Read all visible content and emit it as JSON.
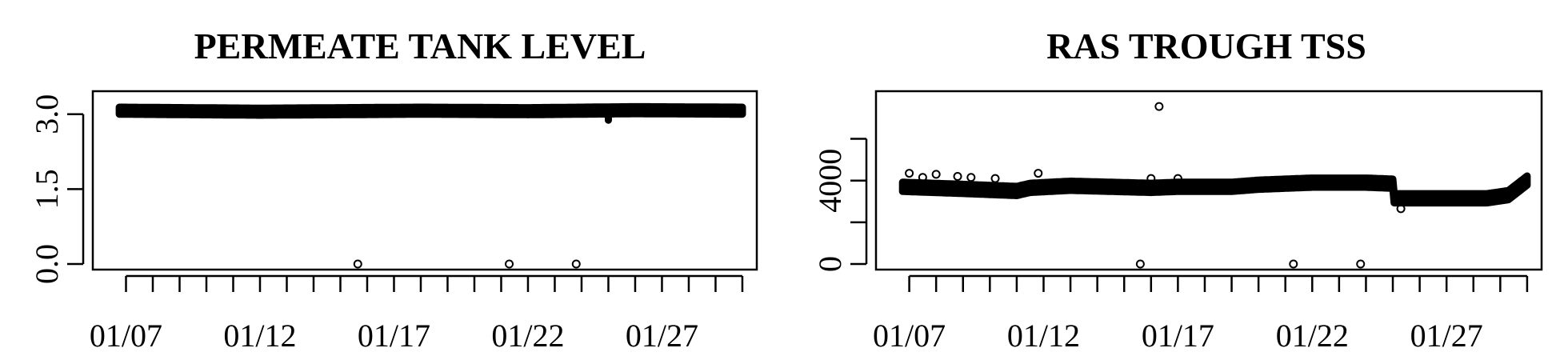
{
  "chart_data": [
    {
      "type": "scatter",
      "title": "PERMEATE TANK LEVEL",
      "xlabel": "",
      "ylabel": "",
      "x_tick_labels": [
        "01/07",
        "01/12",
        "01/17",
        "01/22",
        "01/27"
      ],
      "x_tick_days": [
        7,
        12,
        17,
        22,
        27
      ],
      "y_ticks": [
        0.0,
        1.5,
        3.0
      ],
      "y_tick_labels": [
        "0.0",
        "1.5",
        "3.0"
      ],
      "xlim": [
        6.0,
        30.3
      ],
      "ylim": [
        0.0,
        3.3
      ],
      "band": {
        "description_values": "dense continuous readings",
        "x_start": 6.75,
        "x_end": 30.0,
        "level_points": [
          [
            6.75,
            3.07
          ],
          [
            12,
            3.05
          ],
          [
            18,
            3.07
          ],
          [
            22,
            3.06
          ],
          [
            26,
            3.08
          ],
          [
            30.0,
            3.07
          ]
        ],
        "spread": 0.07,
        "dips": [
          [
            25.0,
            2.88
          ]
        ]
      },
      "outliers": [
        [
          15.65,
          0.0
        ],
        [
          21.3,
          0.0
        ],
        [
          23.8,
          0.0
        ]
      ],
      "grid": false,
      "legend": "none"
    },
    {
      "type": "scatter",
      "title": "RAS TROUGH TSS",
      "xlabel": "",
      "ylabel": "",
      "x_tick_labels": [
        "01/07",
        "01/12",
        "01/17",
        "01/22",
        "01/27"
      ],
      "x_tick_days": [
        7,
        12,
        17,
        22,
        27
      ],
      "y_ticks": [
        0,
        4000
      ],
      "y_tick_labels": [
        "0",
        "4000"
      ],
      "y_minor_ticks": [
        2000,
        6000
      ],
      "xlim": [
        6.0,
        30.3
      ],
      "ylim": [
        0,
        7900
      ],
      "band": {
        "x_start": 6.75,
        "x_end": 30.0,
        "level_points": [
          [
            6.75,
            3700
          ],
          [
            9,
            3600
          ],
          [
            11,
            3500
          ],
          [
            11.5,
            3650
          ],
          [
            13,
            3750
          ],
          [
            16,
            3650
          ],
          [
            17,
            3700
          ],
          [
            19,
            3700
          ],
          [
            20,
            3800
          ],
          [
            22,
            3900
          ],
          [
            24,
            3900
          ],
          [
            25.0,
            3850
          ],
          [
            25.05,
            3150
          ],
          [
            28.5,
            3150
          ],
          [
            29.3,
            3300
          ],
          [
            30.0,
            4000
          ]
        ],
        "spread": 220
      },
      "outliers": [
        [
          7.0,
          4350
        ],
        [
          7.5,
          4150
        ],
        [
          8.0,
          4300
        ],
        [
          8.8,
          4200
        ],
        [
          9.3,
          4150
        ],
        [
          10.2,
          4100
        ],
        [
          11.8,
          4350
        ],
        [
          16.0,
          4100
        ],
        [
          16.3,
          7550
        ],
        [
          17.0,
          4100
        ],
        [
          25.3,
          2650
        ],
        [
          15.6,
          0
        ],
        [
          21.3,
          0
        ],
        [
          23.8,
          0
        ]
      ],
      "grid": false,
      "legend": "none"
    }
  ]
}
